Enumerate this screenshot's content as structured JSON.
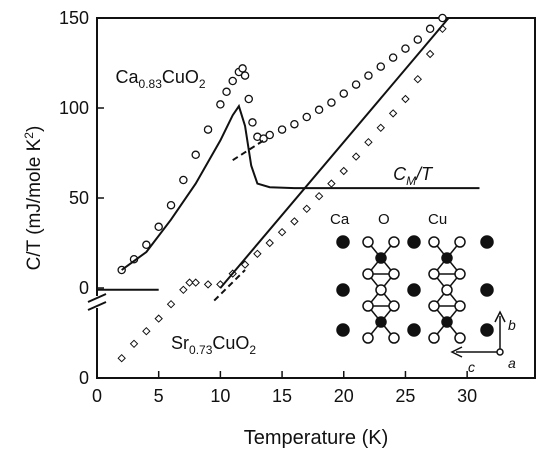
{
  "chart_data": {
    "type": "line",
    "xlabel": "Temperature (K)",
    "ylabel": [
      "C/T (mJ/mole K",
      "2",
      ")"
    ],
    "xlim": [
      0,
      35.5
    ],
    "ylim": [
      0,
      200
    ],
    "xticks": [
      0,
      5,
      10,
      15,
      20,
      25,
      30
    ],
    "yticks": [
      0,
      {
        "value": 50,
        "label": "0"
      },
      {
        "value": 100,
        "label": "50"
      },
      {
        "value": 150,
        "label": "100"
      },
      {
        "value": 200,
        "label": "150"
      }
    ],
    "annotations": [
      {
        "parts": [
          "Ca",
          "0.83",
          "CuO",
          "2"
        ],
        "x": 1.5,
        "y": 164
      },
      {
        "parts": [
          "C",
          "M",
          "/T",
          ""
        ],
        "x": 24,
        "y": 110
      },
      {
        "parts": [
          "Sr",
          "0.73",
          "CuO",
          "2"
        ],
        "x": 6,
        "y": 16
      }
    ],
    "inset": {
      "atoms": [
        "Ca",
        "O",
        "Cu"
      ],
      "axes": [
        "b",
        "c",
        "a"
      ]
    },
    "series": [
      {
        "style": "marker",
        "marker": "circle",
        "color": "#111",
        "x": [
          2,
          3,
          4,
          5,
          6,
          7,
          8,
          9,
          10,
          10.5,
          11,
          11.5,
          11.8,
          12,
          12.3,
          12.6,
          13,
          13.5,
          14,
          15,
          16,
          17,
          18,
          19,
          20,
          21,
          22,
          23,
          24,
          25,
          26,
          27,
          28
        ],
        "values": [
          60,
          66,
          74,
          84,
          96,
          110,
          124,
          138,
          152,
          159,
          165,
          170,
          172,
          168,
          155,
          142,
          134,
          133,
          135,
          138,
          141,
          145,
          149,
          153,
          158,
          163,
          168,
          173,
          178,
          183,
          188,
          194,
          200
        ]
      },
      {
        "style": "solid",
        "color": "#111",
        "x": [
          2,
          4,
          6,
          8,
          10,
          11,
          11.5,
          12,
          12.5,
          13,
          14,
          16,
          20,
          25,
          31
        ],
        "values": [
          60,
          70,
          88,
          108,
          132,
          146,
          151,
          140,
          118,
          108,
          106,
          105.5,
          105.5,
          105.5,
          105.5
        ]
      },
      {
        "style": "solid",
        "color": "#111",
        "x": [
          0,
          5
        ],
        "values": [
          49,
          49
        ]
      },
      {
        "style": "marker",
        "marker": "diamond",
        "color": "#111",
        "x": [
          2,
          3,
          4,
          5,
          6,
          7,
          7.5,
          8,
          9,
          10,
          11,
          12,
          13,
          14,
          15,
          16,
          17,
          18,
          19,
          20,
          21,
          22,
          23,
          24,
          25,
          26,
          27,
          28
        ],
        "values": [
          11,
          19,
          26,
          33,
          41,
          49,
          53,
          53,
          52,
          52,
          58,
          63,
          69,
          75,
          81,
          87,
          94,
          101,
          108,
          115,
          123,
          131,
          139,
          147,
          155,
          166,
          180,
          194
        ]
      },
      {
        "style": "solid",
        "color": "#111",
        "x": [
          10,
          28.5
        ],
        "values": [
          50,
          200
        ]
      },
      {
        "style": "dashed",
        "color": "#111",
        "x": [
          9.5,
          12
        ],
        "values": [
          43,
          60
        ]
      },
      {
        "style": "dashed",
        "color": "#111",
        "x": [
          11,
          13.5
        ],
        "values": [
          121,
          132
        ]
      }
    ]
  }
}
